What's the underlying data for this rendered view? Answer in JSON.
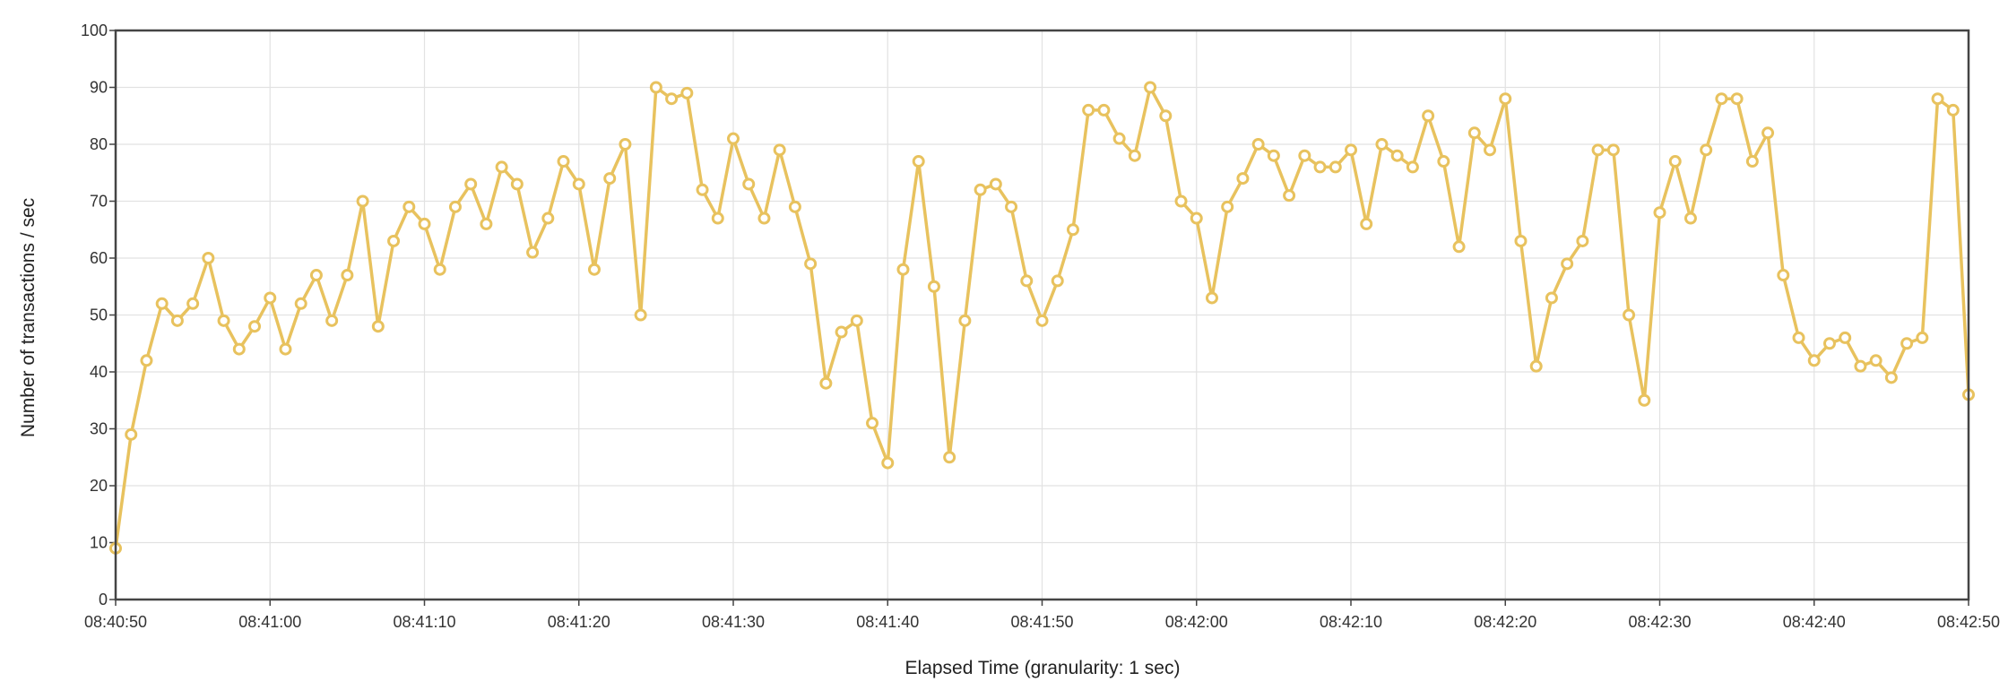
{
  "chart_data": {
    "type": "line",
    "title": "",
    "xlabel": "Elapsed Time (granularity: 1 sec)",
    "ylabel": "Number of transactions / sec",
    "ylim": [
      0,
      100
    ],
    "yticks": [
      0,
      10,
      20,
      30,
      40,
      50,
      60,
      70,
      80,
      90,
      100
    ],
    "xlim": [
      "08:40:50",
      "08:42:50"
    ],
    "xticks": [
      "08:40:50",
      "08:41:00",
      "08:41:10",
      "08:41:20",
      "08:41:30",
      "08:41:40",
      "08:41:50",
      "08:42:00",
      "08:42:10",
      "08:42:20",
      "08:42:30",
      "08:42:40",
      "08:42:50"
    ],
    "grid": true,
    "legend": "none",
    "series": [
      {
        "color": "#e8c25e",
        "x": [
          "08:40:50",
          "08:40:51",
          "08:40:52",
          "08:40:53",
          "08:40:54",
          "08:40:55",
          "08:40:56",
          "08:40:57",
          "08:40:58",
          "08:40:59",
          "08:41:00",
          "08:41:01",
          "08:41:02",
          "08:41:03",
          "08:41:04",
          "08:41:05",
          "08:41:06",
          "08:41:07",
          "08:41:08",
          "08:41:09",
          "08:41:10",
          "08:41:11",
          "08:41:12",
          "08:41:13",
          "08:41:14",
          "08:41:15",
          "08:41:16",
          "08:41:17",
          "08:41:18",
          "08:41:19",
          "08:41:20",
          "08:41:21",
          "08:41:22",
          "08:41:23",
          "08:41:24",
          "08:41:25",
          "08:41:26",
          "08:41:27",
          "08:41:28",
          "08:41:29",
          "08:41:30",
          "08:41:31",
          "08:41:32",
          "08:41:33",
          "08:41:34",
          "08:41:35",
          "08:41:36",
          "08:41:37",
          "08:41:38",
          "08:41:39",
          "08:41:40",
          "08:41:41",
          "08:41:42",
          "08:41:43",
          "08:41:44",
          "08:41:45",
          "08:41:46",
          "08:41:47",
          "08:41:48",
          "08:41:49",
          "08:41:50",
          "08:41:51",
          "08:41:52",
          "08:41:53",
          "08:41:54",
          "08:41:55",
          "08:41:56",
          "08:41:57",
          "08:41:58",
          "08:41:59",
          "08:42:00",
          "08:42:01",
          "08:42:02",
          "08:42:03",
          "08:42:04",
          "08:42:05",
          "08:42:06",
          "08:42:07",
          "08:42:08",
          "08:42:09",
          "08:42:10",
          "08:42:11",
          "08:42:12",
          "08:42:13",
          "08:42:14",
          "08:42:15",
          "08:42:16",
          "08:42:17",
          "08:42:18",
          "08:42:19",
          "08:42:20",
          "08:42:21",
          "08:42:22",
          "08:42:23",
          "08:42:24",
          "08:42:25",
          "08:42:26",
          "08:42:27",
          "08:42:28",
          "08:42:29",
          "08:42:30",
          "08:42:31",
          "08:42:32",
          "08:42:33",
          "08:42:34",
          "08:42:35",
          "08:42:36",
          "08:42:37",
          "08:42:38",
          "08:42:39",
          "08:42:40",
          "08:42:41",
          "08:42:42",
          "08:42:43",
          "08:42:44",
          "08:42:45",
          "08:42:46",
          "08:42:47",
          "08:42:48",
          "08:42:49",
          "08:42:50"
        ],
        "values": [
          9,
          29,
          42,
          52,
          49,
          52,
          60,
          49,
          44,
          48,
          53,
          44,
          52,
          57,
          49,
          57,
          70,
          48,
          63,
          69,
          66,
          58,
          69,
          73,
          66,
          76,
          73,
          61,
          67,
          77,
          73,
          58,
          74,
          80,
          50,
          90,
          88,
          89,
          72,
          67,
          81,
          73,
          67,
          79,
          69,
          59,
          38,
          47,
          49,
          31,
          24,
          58,
          77,
          55,
          25,
          49,
          72,
          73,
          69,
          56,
          49,
          56,
          65,
          86,
          86,
          81,
          78,
          90,
          85,
          70,
          67,
          53,
          69,
          74,
          80,
          78,
          71,
          78,
          76,
          76,
          79,
          66,
          80,
          78,
          76,
          85,
          77,
          62,
          82,
          79,
          88,
          63,
          41,
          53,
          59,
          63,
          79,
          79,
          50,
          35,
          68,
          77,
          67,
          79,
          88,
          88,
          77,
          82,
          57,
          46,
          42,
          45,
          46,
          41,
          42,
          39,
          45,
          46,
          88,
          86,
          36
        ]
      }
    ]
  }
}
